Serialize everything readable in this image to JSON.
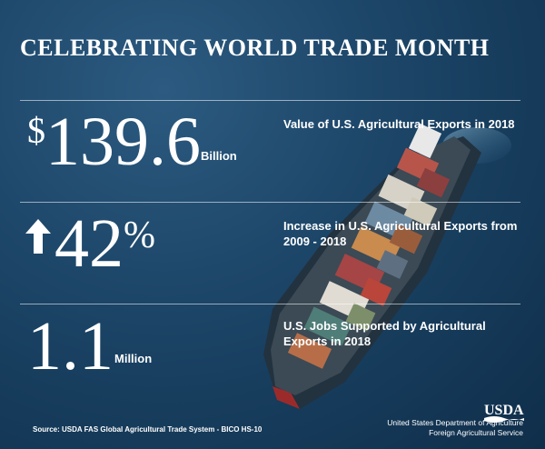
{
  "title": "CELEBRATING WORLD TRADE MONTH",
  "stats": [
    {
      "prefix": "$",
      "value": "139.6",
      "unit": "Billion",
      "description": "Value of U.S. Agricultural Exports in 2018"
    },
    {
      "prefix_icon": "up-arrow-icon",
      "value": "42",
      "suffix": "%",
      "description": "Increase in U.S. Agricultural Exports from 2009 - 2018"
    },
    {
      "value": "1.1",
      "unit": "Million",
      "description": "U.S. Jobs Supported by Agricultural Exports in 2018"
    }
  ],
  "source": "Source: USDA FAS Global Agricultural Trade System - BICO HS-10",
  "agency": {
    "logo_text": "USDA",
    "department": "United States Department of Agriculture",
    "service": "Foreign Agricultural Service"
  },
  "colors": {
    "sea": "#1b4466",
    "text": "#ffffff"
  }
}
